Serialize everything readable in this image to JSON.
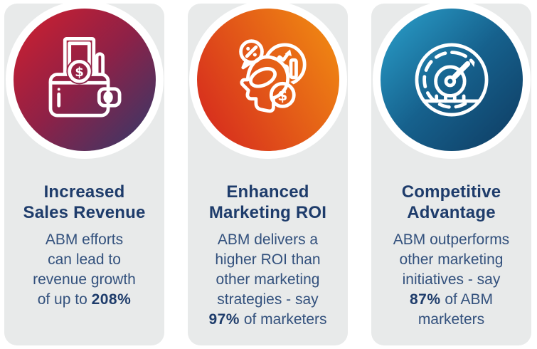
{
  "colors": {
    "page_bg": "#ffffff",
    "card_bg": "#e8eaea",
    "ring": "#ffffff",
    "title_text": "#1e3c6b",
    "body_text": "#33517d",
    "icon_stroke": "#ffffff"
  },
  "cards": [
    {
      "icon": "wallet-money-icon",
      "title": "Increased\nSales Revenue",
      "stat": "208%",
      "gradient": {
        "angle": "135deg",
        "stops": [
          "#d21f2e",
          "#8e2147",
          "#303a6b"
        ]
      },
      "body_segments": [
        {
          "text": "ABM efforts\ncan lead to\nrevenue growth\nof up to ",
          "bold": false
        },
        {
          "text": "208%",
          "bold": true
        }
      ]
    },
    {
      "icon": "marketing-roi-icon",
      "title": "Enhanced\nMarketing ROI",
      "stat": "97%",
      "gradient": {
        "angle": "60deg",
        "stops": [
          "#d4231f",
          "#f29011"
        ]
      },
      "body_segments": [
        {
          "text": "ABM delivers a\nhigher ROI than\nother marketing\nstrategies - say\n",
          "bold": false
        },
        {
          "text": "97%",
          "bold": true
        },
        {
          "text": " of marketers",
          "bold": false
        }
      ]
    },
    {
      "icon": "speedometer-icon",
      "title": "Competitive\nAdvantage",
      "stat": "87%",
      "gradient": {
        "angle": "135deg",
        "stops": [
          "#2ba2cd",
          "#16618d",
          "#0e3a60"
        ]
      },
      "body_segments": [
        {
          "text": "ABM outperforms\nother marketing\ninitiatives - say\n",
          "bold": false
        },
        {
          "text": "87%",
          "bold": true
        },
        {
          "text": " of ABM\nmarketers",
          "bold": false
        }
      ]
    }
  ]
}
